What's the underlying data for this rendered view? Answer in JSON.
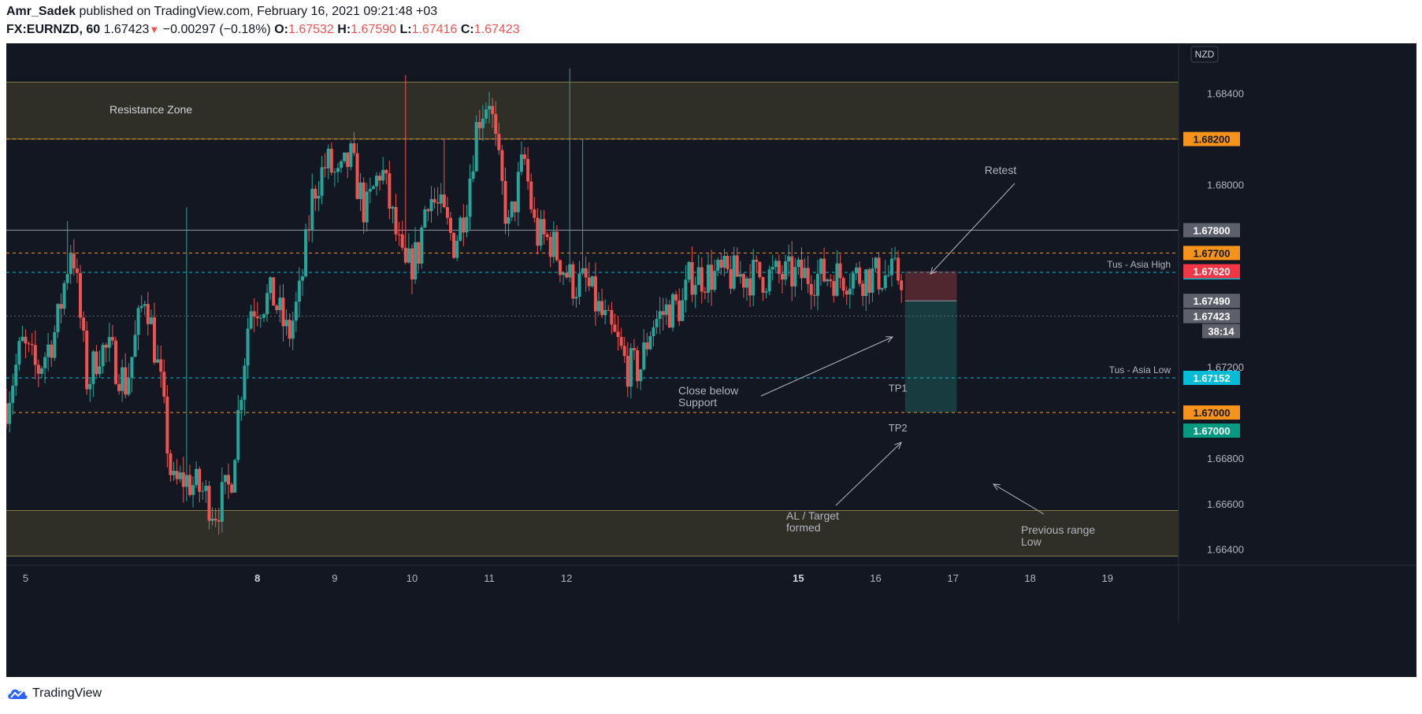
{
  "header": {
    "author": "Amr_Sadek",
    "published": "published on TradingView.com, February 16, 2021 09:21:48 +03",
    "symbol": "FX:EURNZD, 60",
    "last": "1.67423",
    "change": "−0.00297 (−0.18%)",
    "o_label": "O:",
    "o_value": "1.67532",
    "h_label": "H:",
    "h_value": "1.67590",
    "l_label": "L:",
    "l_value": "1.67416",
    "c_label": "C:",
    "c_value": "1.67423"
  },
  "footer": {
    "brand": "TradingView",
    "logo_icon": "tradingview-cloud-icon"
  },
  "currency_button": "NZD",
  "colors": {
    "background": "#131722",
    "up": "#26a69a",
    "down": "#ef5350",
    "zone": "#2f2e27",
    "zone_border": "#807d4a",
    "orange": "#f7931a",
    "cyan": "#00bcd4",
    "teal": "#089981",
    "grey": "#5d606b",
    "text": "#b2b5be"
  },
  "chart_data": {
    "type": "candlestick",
    "symbol": "FX:EURNZD",
    "interval": "60",
    "ylim": [
      1.6633,
      1.6862
    ],
    "xlim": [
      4.75,
      19.92
    ],
    "y_ticks": [
      "1.68400",
      "1.68000",
      "1.67200",
      "1.66800",
      "1.66600",
      "1.66400"
    ],
    "x_ticks": [
      {
        "label": "5",
        "x": 5
      },
      {
        "label": "8",
        "x": 8,
        "bold": true
      },
      {
        "label": "9",
        "x": 9
      },
      {
        "label": "10",
        "x": 10
      },
      {
        "label": "11",
        "x": 11
      },
      {
        "label": "12",
        "x": 12
      },
      {
        "label": "15",
        "x": 15,
        "bold": true
      },
      {
        "label": "16",
        "x": 16
      },
      {
        "label": "17",
        "x": 17
      },
      {
        "label": "18",
        "x": 18
      },
      {
        "label": "19",
        "x": 19
      }
    ],
    "candle_path": [
      [
        4.75,
        1.6704
      ],
      [
        4.95,
        1.673
      ],
      [
        5.15,
        1.6718
      ],
      [
        5.4,
        1.6737
      ],
      [
        5.6,
        1.6776
      ],
      [
        5.8,
        1.6712
      ],
      [
        5.95,
        1.6728
      ],
      [
        6.1,
        1.6726
      ],
      [
        6.3,
        1.6712
      ],
      [
        6.55,
        1.6754
      ],
      [
        6.75,
        1.6711
      ],
      [
        6.9,
        1.6667
      ],
      [
        7.05,
        1.6671
      ],
      [
        7.3,
        1.6665
      ],
      [
        7.45,
        1.6657
      ],
      [
        7.65,
        1.6668
      ],
      [
        7.9,
        1.6746
      ],
      [
        8.2,
        1.6751
      ],
      [
        8.4,
        1.6733
      ],
      [
        8.55,
        1.6752
      ],
      [
        8.72,
        1.6797
      ],
      [
        8.9,
        1.681
      ],
      [
        9.05,
        1.6801
      ],
      [
        9.2,
        1.6812
      ],
      [
        9.4,
        1.6787
      ],
      [
        9.6,
        1.6808
      ],
      [
        9.78,
        1.678
      ],
      [
        9.9,
        1.6761
      ],
      [
        10.08,
        1.677
      ],
      [
        10.2,
        1.6797
      ],
      [
        10.4,
        1.6786
      ],
      [
        10.55,
        1.6774
      ],
      [
        10.7,
        1.6792
      ],
      [
        10.85,
        1.6829
      ],
      [
        11.0,
        1.6839
      ],
      [
        11.1,
        1.6812
      ],
      [
        11.25,
        1.678
      ],
      [
        11.45,
        1.6812
      ],
      [
        11.6,
        1.6778
      ],
      [
        11.8,
        1.6775
      ],
      [
        11.98,
        1.6762
      ],
      [
        12.1,
        1.6756
      ],
      [
        12.25,
        1.6757
      ],
      [
        12.4,
        1.6746
      ],
      [
        12.52,
        1.6738
      ],
      [
        12.66,
        1.673
      ],
      [
        12.78,
        1.672
      ],
      [
        12.95,
        1.6719
      ],
      [
        13.1,
        1.6739
      ],
      [
        13.3,
        1.6745
      ],
      [
        13.5,
        1.6747
      ],
      [
        13.6,
        1.676
      ]
    ],
    "wick_spikes": [
      [
        5.55,
        1.6784
      ],
      [
        7.1,
        1.679
      ],
      [
        9.9,
        1.6848
      ],
      [
        12.04,
        1.6851
      ],
      [
        10.4,
        1.682
      ],
      [
        12.2,
        1.682
      ]
    ],
    "levels": [
      {
        "price": 1.682,
        "label": "1.68200",
        "color": "#f7931a",
        "style": "dashed-orange"
      },
      {
        "price": 1.678,
        "label": "1.67800",
        "color": "#5d606b",
        "style": "solid-grey"
      },
      {
        "price": 1.677,
        "label": "1.67700",
        "color": "#f7931a",
        "style": "dashed-orange"
      },
      {
        "price": 1.67615,
        "label": "1.67615",
        "color": "#00bcd4",
        "style": "dashed-cyan",
        "name": "Tus - Asia High"
      },
      {
        "price": 1.67423,
        "label": "1.67423",
        "color": "#5d606b",
        "style": "dotted-grey"
      },
      {
        "price": 1.67152,
        "label": "1.67152",
        "color": "#00bcd4",
        "style": "dashed-cyan",
        "name": "Tus - Asia Low"
      },
      {
        "price": 1.67,
        "label": "1.67000",
        "color": "#f7931a",
        "style": "dashed-orange"
      }
    ],
    "extra_price_labels": [
      {
        "price": 1.6762,
        "label": "1.67620",
        "color": "#f23645"
      },
      {
        "price": 1.6749,
        "label": "1.67490",
        "color": "#5d606b"
      },
      {
        "label": "38:14",
        "color": "#5d606b"
      },
      {
        "label": "1.67000",
        "color": "#089981",
        "below": "1.67000"
      }
    ],
    "zones": [
      {
        "y1": 1.682,
        "y2": 1.6845,
        "label": "Resistance Zone"
      },
      {
        "y1": 1.6637,
        "y2": 1.6657,
        "label": ""
      }
    ],
    "position": {
      "x1": 16.38,
      "x2": 17.05,
      "stop": 1.6762,
      "entry": 1.6749,
      "target": 1.67,
      "tp_labels": [
        "TP1",
        "TP2"
      ]
    },
    "annotations": [
      {
        "text": "Retest",
        "lines": [
          "Retest"
        ]
      },
      {
        "text": "Close below Support",
        "lines": [
          "Close below",
          "Support"
        ]
      },
      {
        "text": "AL / Target formed",
        "lines": [
          "AL / Target",
          "formed"
        ]
      },
      {
        "text": "Previous range Low",
        "lines": [
          "Previous range",
          "Low"
        ]
      }
    ]
  }
}
